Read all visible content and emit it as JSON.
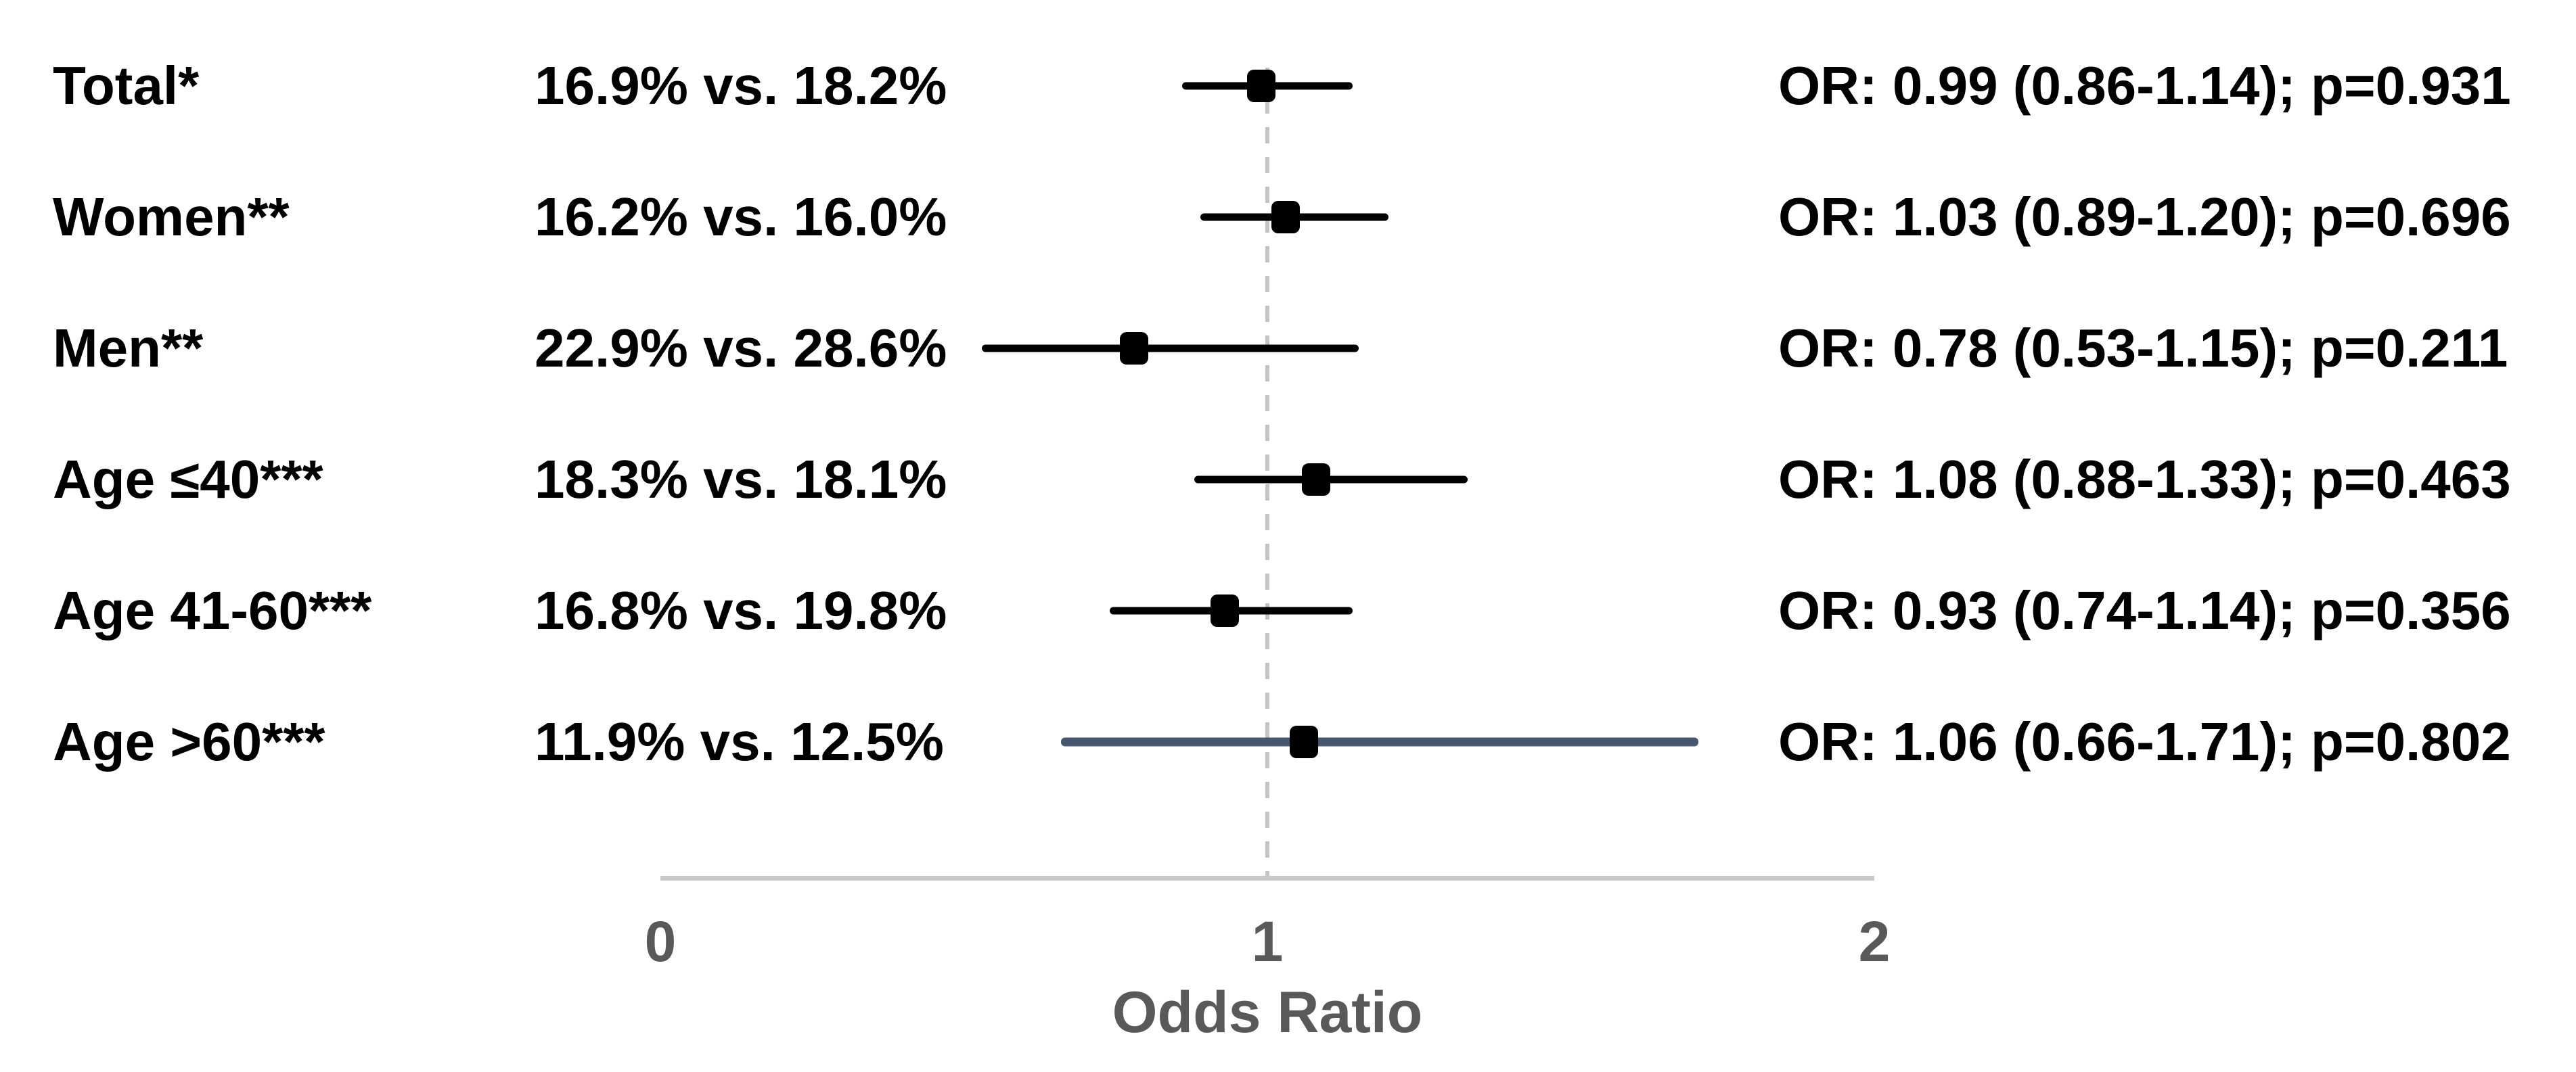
{
  "chart_data": {
    "type": "forest",
    "title": "",
    "xlabel": "Odds Ratio",
    "xlim": [
      0,
      2
    ],
    "x_ticks": [
      0,
      1,
      2
    ],
    "reference_line": 1,
    "grid": false,
    "legend": "none",
    "rows": [
      {
        "label": "Total*",
        "comparison": "16.9% vs. 18.2%",
        "or": 0.99,
        "ci_low": 0.86,
        "ci_high": 1.14,
        "p": 0.931,
        "result_text": "OR: 0.99 (0.86-1.14); p=0.931",
        "ci_color": "#000000"
      },
      {
        "label": "Women**",
        "comparison": "16.2% vs. 16.0%",
        "or": 1.03,
        "ci_low": 0.89,
        "ci_high": 1.2,
        "p": 0.696,
        "result_text": "OR: 1.03 (0.89-1.20); p=0.696",
        "ci_color": "#000000"
      },
      {
        "label": "Men**",
        "comparison": "22.9% vs. 28.6%",
        "or": 0.78,
        "ci_low": 0.53,
        "ci_high": 1.15,
        "p": 0.211,
        "result_text": "OR: 0.78 (0.53-1.15); p=0.211",
        "ci_color": "#000000"
      },
      {
        "label": "Age ≤40***",
        "comparison": "18.3% vs. 18.1%",
        "or": 1.08,
        "ci_low": 0.88,
        "ci_high": 1.33,
        "p": 0.463,
        "result_text": "OR: 1.08 (0.88-1.33); p=0.463",
        "ci_color": "#000000"
      },
      {
        "label": "Age 41-60***",
        "comparison": "16.8% vs. 19.8%",
        "or": 0.93,
        "ci_low": 0.74,
        "ci_high": 1.14,
        "p": 0.356,
        "result_text": "OR: 0.93 (0.74-1.14); p=0.356",
        "ci_color": "#000000"
      },
      {
        "label": "Age >60***",
        "comparison": "11.9% vs. 12.5%",
        "or": 1.06,
        "ci_low": 0.66,
        "ci_high": 1.71,
        "p": 0.802,
        "result_text": "OR: 1.06 (0.66-1.71); p=0.802",
        "ci_color": "#46566C"
      }
    ],
    "colors": {
      "marker": "#000000",
      "ci_default": "#000000",
      "ci_highlight": "#46566C",
      "reference_line": "#C4C4C4",
      "axis_line": "#C9C9C9",
      "axis_text": "#595959",
      "text": "#000000",
      "background": "#FFFFFF"
    }
  }
}
